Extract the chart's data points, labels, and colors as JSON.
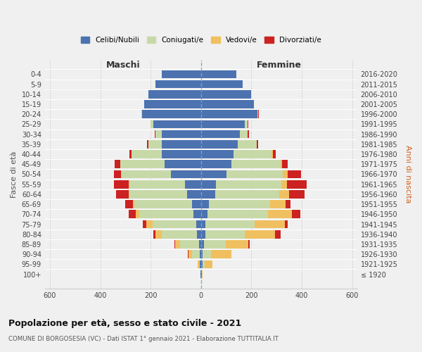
{
  "age_groups": [
    "0-4",
    "5-9",
    "10-14",
    "15-19",
    "20-24",
    "25-29",
    "30-34",
    "35-39",
    "40-44",
    "45-49",
    "50-54",
    "55-59",
    "60-64",
    "65-69",
    "70-74",
    "75-79",
    "80-84",
    "85-89",
    "90-94",
    "95-99",
    "100+"
  ],
  "birth_years": [
    "2016-2020",
    "2011-2015",
    "2006-2010",
    "2001-2005",
    "1996-2000",
    "1991-1995",
    "1986-1990",
    "1981-1985",
    "1976-1980",
    "1971-1975",
    "1966-1970",
    "1961-1965",
    "1956-1960",
    "1951-1955",
    "1946-1950",
    "1941-1945",
    "1936-1940",
    "1931-1935",
    "1926-1930",
    "1921-1925",
    "≤ 1920"
  ],
  "maschi": {
    "celibe": [
      155,
      180,
      210,
      225,
      235,
      190,
      155,
      155,
      155,
      145,
      120,
      65,
      55,
      35,
      30,
      18,
      15,
      8,
      5,
      4,
      2
    ],
    "coniugato": [
      0,
      0,
      0,
      0,
      3,
      10,
      25,
      55,
      120,
      175,
      195,
      220,
      230,
      230,
      215,
      175,
      140,
      75,
      30,
      5,
      0
    ],
    "vedovo": [
      0,
      0,
      0,
      0,
      0,
      0,
      0,
      0,
      1,
      2,
      2,
      2,
      3,
      5,
      15,
      25,
      25,
      20,
      15,
      5,
      0
    ],
    "divorziato": [
      0,
      0,
      0,
      0,
      0,
      1,
      3,
      5,
      8,
      22,
      28,
      60,
      48,
      30,
      28,
      12,
      8,
      3,
      2,
      0,
      0
    ]
  },
  "femmine": {
    "nubile": [
      140,
      165,
      200,
      210,
      225,
      175,
      155,
      145,
      130,
      120,
      100,
      60,
      55,
      30,
      25,
      18,
      18,
      12,
      5,
      5,
      2
    ],
    "coniugata": [
      0,
      0,
      0,
      0,
      3,
      10,
      30,
      75,
      150,
      195,
      225,
      260,
      255,
      245,
      240,
      195,
      155,
      85,
      35,
      10,
      0
    ],
    "vedova": [
      0,
      0,
      0,
      0,
      0,
      1,
      1,
      2,
      5,
      8,
      18,
      20,
      40,
      60,
      95,
      120,
      120,
      90,
      80,
      30,
      3
    ],
    "divorziata": [
      0,
      0,
      0,
      0,
      1,
      2,
      4,
      5,
      12,
      20,
      55,
      80,
      60,
      20,
      35,
      12,
      22,
      5,
      2,
      0,
      0
    ]
  },
  "colors": {
    "celibe": "#4c72b0",
    "coniugato": "#c8d9a8",
    "vedovo": "#f0c060",
    "divorziato": "#cc2222"
  },
  "title": "Popolazione per età, sesso e stato civile - 2021",
  "subtitle": "COMUNE DI BORGOSESIA (VC) - Dati ISTAT 1° gennaio 2021 - Elaborazione TUTTITALIA.IT",
  "ylabel": "Fasce di età",
  "ylabel_right": "Anni di nascita",
  "xlabel_maschi": "Maschi",
  "xlabel_femmine": "Femmine",
  "xlim": 620,
  "bg_color": "#f0f0f0",
  "legend_labels": [
    "Celibi/Nubili",
    "Coniugati/e",
    "Vedovi/e",
    "Divorziati/e"
  ]
}
